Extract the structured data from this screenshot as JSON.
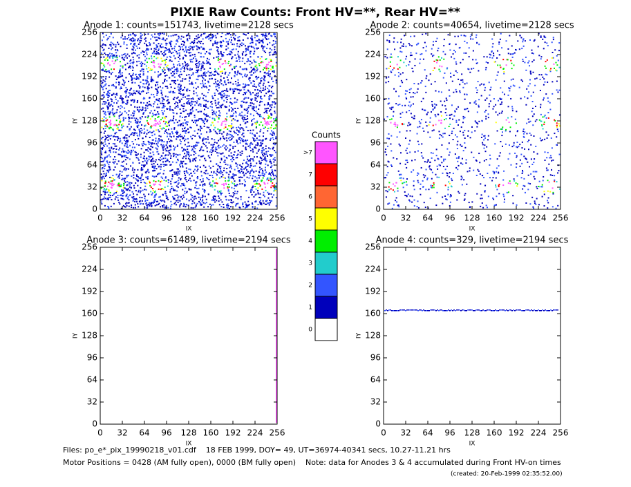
{
  "title": "PIXIE Raw Counts:  Front HV=**, Rear HV=**",
  "chart_data": [
    {
      "type": "heatmap",
      "title": "Anode 1: counts=151743, livetime=2128 secs",
      "xlabel": "IX",
      "ylabel": "IY",
      "xlim": [
        0,
        256
      ],
      "xticks": [
        0,
        32,
        64,
        96,
        128,
        160,
        192,
        224,
        256
      ],
      "ylim": [
        0,
        256
      ],
      "yticks": [
        0,
        32,
        64,
        96,
        128,
        160,
        192,
        224,
        256
      ]
    },
    {
      "type": "heatmap",
      "title": "Anode 2: counts=40654, livetime=2128 secs",
      "xlabel": "IX",
      "ylabel": "IY",
      "xlim": [
        0,
        256
      ],
      "xticks": [
        0,
        32,
        64,
        96,
        128,
        160,
        192,
        224,
        256
      ],
      "ylim": [
        0,
        256
      ],
      "yticks": [
        0,
        32,
        64,
        96,
        128,
        160,
        192,
        224,
        256
      ]
    },
    {
      "type": "heatmap",
      "title": "Anode 3: counts=61489, livetime=2194 secs",
      "xlabel": "IX",
      "ylabel": "IY",
      "xlim": [
        0,
        256
      ],
      "xticks": [
        0,
        32,
        64,
        96,
        128,
        160,
        192,
        224,
        256
      ],
      "ylim": [
        0,
        256
      ],
      "yticks": [
        0,
        32,
        64,
        96,
        128,
        160,
        192,
        224,
        256
      ]
    },
    {
      "type": "heatmap",
      "title": "Anode 4: counts=329, livetime=2194 secs",
      "xlabel": "IX",
      "ylabel": "IY",
      "xlim": [
        0,
        256
      ],
      "xticks": [
        0,
        32,
        64,
        96,
        128,
        160,
        192,
        224,
        256
      ],
      "ylim": [
        0,
        256
      ],
      "yticks": [
        0,
        32,
        64,
        96,
        128,
        160,
        192,
        224,
        256
      ]
    }
  ],
  "colorbar": {
    "title": "Counts",
    "labels": [
      ">7",
      "7",
      "6",
      "5",
      "4",
      "3",
      "2",
      "1",
      "0"
    ],
    "colors": [
      "#ff55ff",
      "#ff0000",
      "#ff6633",
      "#ffff00",
      "#00ee00",
      "#22cccc",
      "#3355ff",
      "#0000bb",
      "#ffffff"
    ]
  },
  "footer": [
    "Files: po_e*_pix_19990218_v01.cdf    18 FEB 1999, DOY= 49, UT=36974-40341 secs, 10.27-11.21 hrs",
    "Motor Positions = 0428 (AM fully open), 0000 (BM fully open)    Note: data for Anodes 3 & 4 accumulated during Front HV-on times",
    "(created: 20-Feb-1999 02:35:52.00)"
  ]
}
